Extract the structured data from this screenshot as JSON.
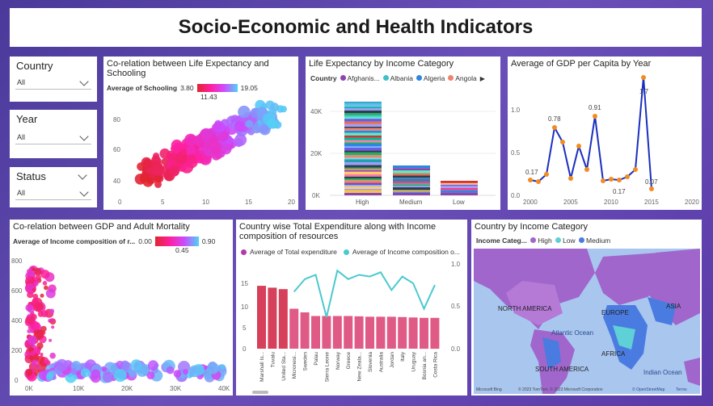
{
  "dashboard_title": "Socio-Economic and Health Indicators",
  "slicers": {
    "country": {
      "label": "Country",
      "value": "All"
    },
    "year": {
      "label": "Year",
      "value": "All"
    },
    "status": {
      "label": "Status",
      "value": "All"
    }
  },
  "life_exp_schooling": {
    "title": "Co-relation between Life Expectancy and Schooling",
    "legend_label": "Average of Schooling",
    "legend_min": "3.80",
    "legend_mid": "11.43",
    "legend_max": "19.05",
    "y_ticks": [
      "80",
      "60",
      "40"
    ],
    "x_ticks": [
      "0",
      "5",
      "10",
      "15",
      "20"
    ]
  },
  "income_category_chart": {
    "title": "Life Expectancy by Income Category",
    "legend_title": "Country",
    "legend_items": [
      {
        "name": "Afghanis...",
        "color": "#8e44ad"
      },
      {
        "name": "Albania",
        "color": "#3fc1c9"
      },
      {
        "name": "Algeria",
        "color": "#2e86de"
      },
      {
        "name": "Angola",
        "color": "#f0826e"
      }
    ],
    "y_ticks": [
      "40K",
      "20K",
      "0K"
    ],
    "categories": [
      "High",
      "Medium",
      "Low"
    ]
  },
  "gdp_per_capita": {
    "title": "Average of GDP per Capita by Year",
    "y_ticks": [
      "1.0",
      "0.5",
      "0.0"
    ],
    "x_ticks": [
      "2000",
      "2005",
      "2010",
      "2015",
      "2020"
    ],
    "labels": [
      "0.17",
      "0.78",
      "0.91",
      "0.17",
      "1.7",
      "0.07"
    ]
  },
  "gdp_mortality": {
    "title": "Co-relation between GDP and Adult Mortality",
    "legend_label": "Average of Income composition of r...",
    "legend_min": "0.00",
    "legend_mid": "0.45",
    "legend_max": "0.90",
    "y_ticks": [
      "800",
      "600",
      "400",
      "200",
      "0"
    ],
    "x_ticks": [
      "0K",
      "10K",
      "20K",
      "30K",
      "40K"
    ]
  },
  "expenditure_chart": {
    "title": "Country wise Total Expenditure along with Income composition of resources",
    "legend_a": "Average of Total expenditure",
    "legend_b": "Average of Income composition o...",
    "y_left": [
      "15",
      "10",
      "5",
      "0"
    ],
    "y_right": [
      "1.0",
      "0.5",
      "0.0"
    ],
    "countries": [
      "Marshall Is...",
      "Tuvalu",
      "United Sta...",
      "Micronesi...",
      "Sweden",
      "Palau",
      "Sierra Leone",
      "Norway",
      "Greece",
      "New Zeala...",
      "Slovenia",
      "Australia",
      "Jordan",
      "Italy",
      "Uruguay",
      "Bosnia an...",
      "Costa Rica"
    ]
  },
  "map_chart": {
    "title": "Country by Income Category",
    "legend_title": "Income Categ...",
    "legend_items": [
      {
        "name": "High",
        "color": "#a066cc"
      },
      {
        "name": "Low",
        "color": "#5fd0d6"
      },
      {
        "name": "Medium",
        "color": "#4a7be0"
      }
    ],
    "labels": {
      "north_america": "NORTH AMERICA",
      "europe": "EUROPE",
      "asia": "ASIA",
      "atlantic": "Atlantic Ocean",
      "africa": "AFRICA",
      "south_america": "SOUTH AMERICA",
      "indian": "Indian Ocean"
    },
    "attribution": "© 2023 TomTom, © 2023 Microsoft Corporation",
    "osm": "© OpenStreetMap",
    "terms": "Terms",
    "bing": "Microsoft Bing"
  }
}
